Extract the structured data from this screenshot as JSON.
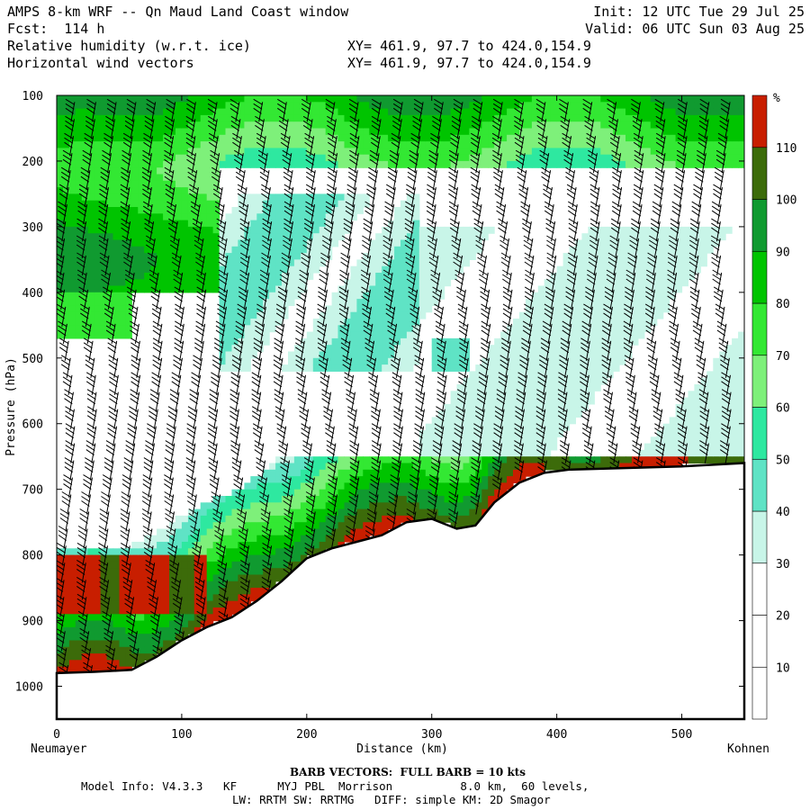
{
  "header": {
    "title": "AMPS 8-km WRF -- Qn Maud Land Coast window",
    "forecast": "Fcst:  114 h",
    "field1": "Relative humidity (w.r.t. ice)",
    "field2": "Horizontal wind vectors",
    "init": "Init: 12 UTC Tue 29 Jul 25",
    "valid": "Valid: 06 UTC Sun 03 Aug 25",
    "xy1": "XY= 461.9, 97.7 to 424.0,154.9",
    "xy2": "XY= 461.9, 97.7 to 424.0,154.9"
  },
  "footer": {
    "barb_note": "BARB VECTORS:  FULL BARB = 10 kts",
    "model_line1": "Model Info: V4.3.3   KF      MYJ PBL  Morrison          8.0 km,  60 levels,",
    "model_line2": "LW: RRTM SW: RRTMG   DIFF: simple KM: 2D Smagor"
  },
  "colors": {
    "bins": [
      "#ffffff",
      "#ffffff",
      "#ffffff",
      "#c8f5e8",
      "#5fe3c5",
      "#2ee8a0",
      "#7ef07a",
      "#33e833",
      "#00c400",
      "#109a30",
      "#3c6b0a",
      "#c81e00"
    ],
    "terrain_line": "#000000"
  },
  "chart_data": {
    "type": "heatmap",
    "xlabel": "Distance (km)",
    "ylabel": "Pressure (hPa)",
    "x_left_label": "Neumayer",
    "x_right_label": "Kohnen",
    "xlim": [
      0,
      550
    ],
    "ylim": [
      1050,
      100
    ],
    "x_ticks": [
      0,
      100,
      200,
      300,
      400,
      500
    ],
    "y_ticks": [
      100,
      200,
      300,
      400,
      500,
      600,
      700,
      800,
      900,
      1000
    ],
    "colorbar": {
      "unit": "%",
      "levels": [
        10,
        20,
        30,
        40,
        50,
        60,
        70,
        80,
        90,
        100,
        110
      ],
      "min": 0,
      "max": 120
    },
    "terrain_surface_pressure": {
      "x": [
        0,
        30,
        60,
        80,
        100,
        120,
        140,
        160,
        180,
        200,
        220,
        240,
        260,
        280,
        300,
        320,
        335,
        350,
        370,
        390,
        410,
        450,
        500,
        550
      ],
      "p": [
        980,
        978,
        975,
        955,
        930,
        910,
        895,
        870,
        840,
        805,
        790,
        780,
        770,
        750,
        745,
        760,
        755,
        720,
        690,
        675,
        670,
        668,
        665,
        660
      ]
    }
  }
}
